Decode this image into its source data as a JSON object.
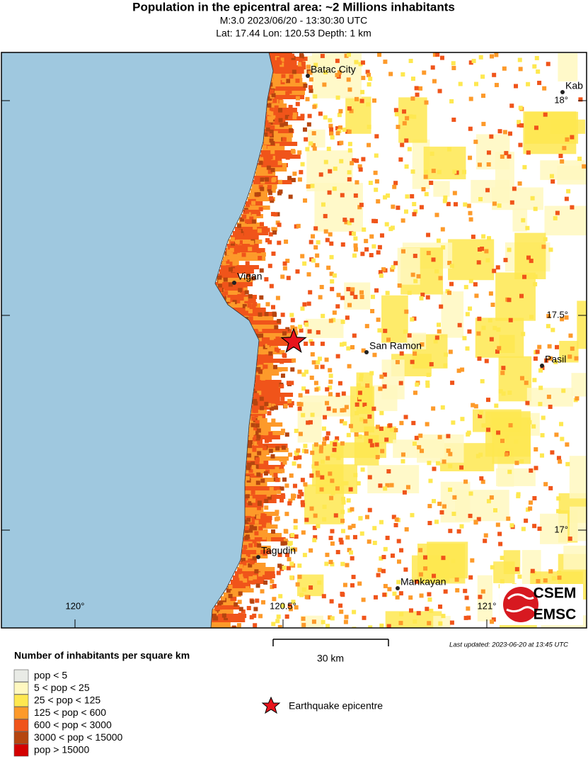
{
  "header": {
    "title": "Population in the epicentral area: ~2 Millions inhabitants",
    "subtitle": "M:3.0 2023/06/20 - 13:30:30 UTC",
    "location": "Lat: 17.44 Lon: 120.53 Depth: 1 km"
  },
  "map": {
    "cities": [
      {
        "label": "Batac City"
      },
      {
        "label": "Kab"
      },
      {
        "label": "Vigan"
      },
      {
        "label": "San Ramon"
      },
      {
        "label": "Pasil"
      },
      {
        "label": "Tagudin"
      },
      {
        "label": "Mankayan"
      }
    ],
    "latitudes": [
      "18°",
      "17.5°",
      "17°"
    ],
    "longitudes": [
      "120°",
      "120.5°",
      "121°"
    ],
    "scale_bar": "30 km",
    "last_updated": "Last updated: 2023-06-20 at 13:45 UTC",
    "logo": [
      "CSEM",
      "EMSC"
    ]
  },
  "legend": {
    "title": "Number of inhabitants per square km",
    "items": [
      {
        "label": "pop < 5",
        "color": "#e9ebe6"
      },
      {
        "label": "5 < pop < 25",
        "color": "#fff8c0"
      },
      {
        "label": "25 < pop < 125",
        "color": "#fee850"
      },
      {
        "label": "125 < pop < 600",
        "color": "#fd9a2a"
      },
      {
        "label": "600 < pop < 3000",
        "color": "#f0541a"
      },
      {
        "label": "3000 < pop < 15000",
        "color": "#b5450f"
      },
      {
        "label": "pop > 15000",
        "color": "#d40000"
      }
    ],
    "epicentre": "Earthquake epicentre"
  }
}
